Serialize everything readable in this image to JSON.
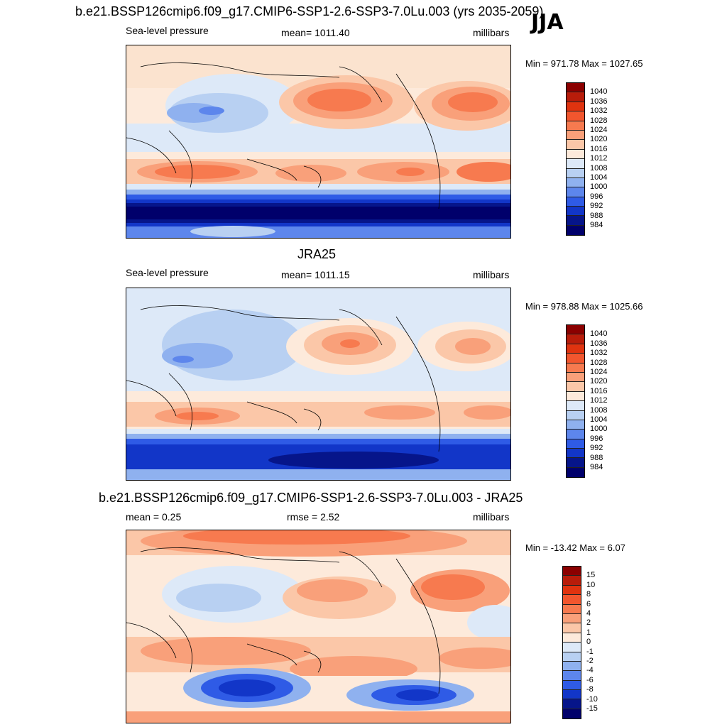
{
  "season": "JJA",
  "panel1": {
    "title": "b.e21.BSSP126cmip6.f09_g17.CMIP6-SSP1-2.6-SSP3-7.0Lu.003 (yrs 2035-2059)",
    "variable": "Sea-level pressure",
    "mean": "mean= 1011.40",
    "units": "millibars",
    "minmax": "Min = 971.78 Max = 1027.65",
    "levels": [
      "1040",
      "1036",
      "1032",
      "1028",
      "1024",
      "1020",
      "1016",
      "1012",
      "1008",
      "1004",
      "1000",
      "996",
      "992",
      "988",
      "984"
    ]
  },
  "panel2": {
    "title": "JRA25",
    "variable": "Sea-level pressure",
    "mean": "mean= 1011.15",
    "units": "millibars",
    "minmax": "Min = 978.88 Max = 1025.66",
    "levels": [
      "1040",
      "1036",
      "1032",
      "1028",
      "1024",
      "1020",
      "1016",
      "1012",
      "1008",
      "1004",
      "1000",
      "996",
      "992",
      "988",
      "984"
    ]
  },
  "panel3": {
    "title": "b.e21.BSSP126cmip6.f09_g17.CMIP6-SSP1-2.6-SSP3-7.0Lu.003 - JRA25",
    "mean": "mean =   0.25",
    "rmse": "rmse =   2.52",
    "units": "millibars",
    "minmax": "Min = -13.42 Max =   6.07",
    "levels": [
      "15",
      "10",
      "8",
      "6",
      "4",
      "2",
      "1",
      "0",
      "-1",
      "-2",
      "-4",
      "-6",
      "-8",
      "-10",
      "-15"
    ]
  },
  "colors": {
    "scale": [
      "#8b0000",
      "#b81c0a",
      "#e0330f",
      "#f2562e",
      "#f77a4f",
      "#f9a07a",
      "#fbc7a8",
      "#fdeadb",
      "#dde9f8",
      "#b8d0f2",
      "#8fb1ef",
      "#5d86ec",
      "#2f5be6",
      "#1236c8",
      "#06158a",
      "#00006b"
    ]
  }
}
